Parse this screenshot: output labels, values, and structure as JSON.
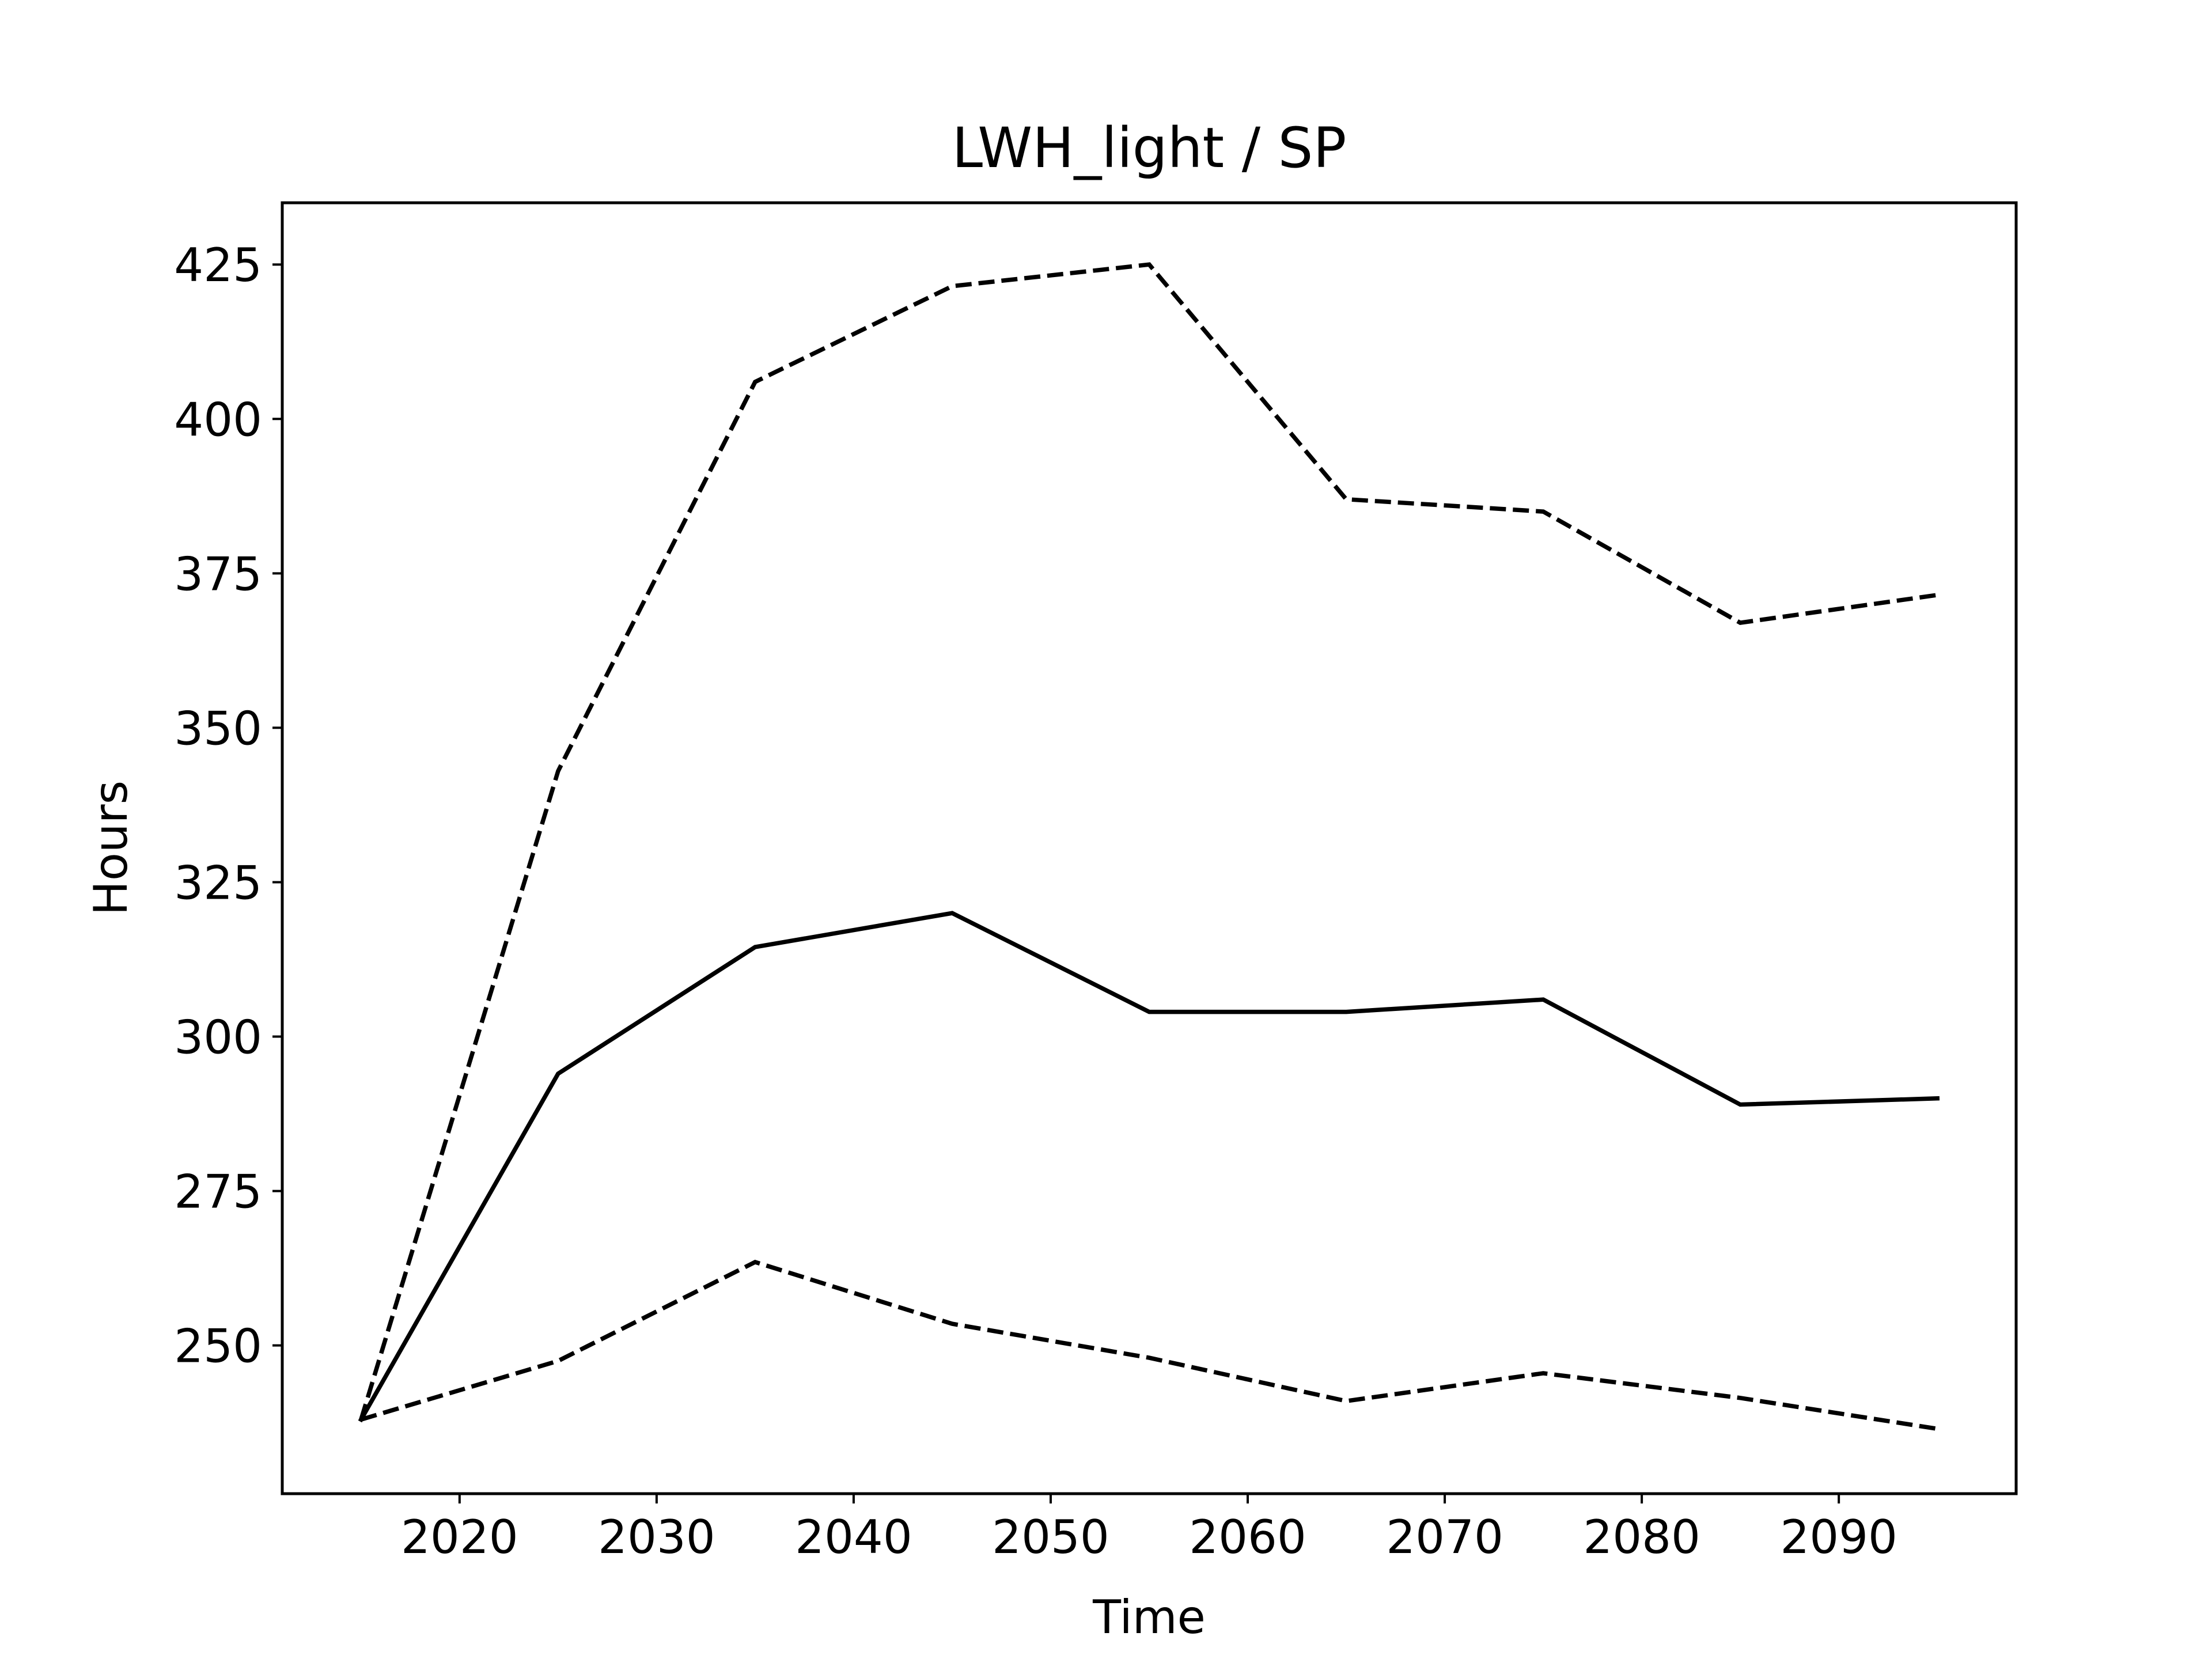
{
  "chart_data": {
    "type": "line",
    "title": "LWH_light / SP",
    "xlabel": "Time",
    "ylabel": "Hours",
    "xlim": [
      2011,
      2099
    ],
    "ylim": [
      226,
      435
    ],
    "xticks": [
      2020,
      2030,
      2040,
      2050,
      2060,
      2070,
      2080,
      2090
    ],
    "yticks": [
      250,
      275,
      300,
      325,
      350,
      375,
      400,
      425
    ],
    "grid": false,
    "legend": "none",
    "x": [
      2015,
      2025,
      2035,
      2045,
      2055,
      2065,
      2075,
      2085,
      2095
    ],
    "series": [
      {
        "style": "solid",
        "values": [
          238,
          294,
          314.5,
          320,
          304,
          304,
          306,
          289,
          290
        ]
      },
      {
        "style": "dashed",
        "values": [
          238,
          343,
          406,
          421.5,
          425,
          387,
          385,
          367,
          371.5
        ]
      },
      {
        "style": "dashed",
        "values": [
          238,
          247.5,
          263.5,
          253.5,
          248,
          241,
          245.5,
          241.5,
          236.5
        ]
      }
    ],
    "colors": {
      "line": "#000000",
      "axes": "#000000",
      "background": "#ffffff"
    }
  }
}
